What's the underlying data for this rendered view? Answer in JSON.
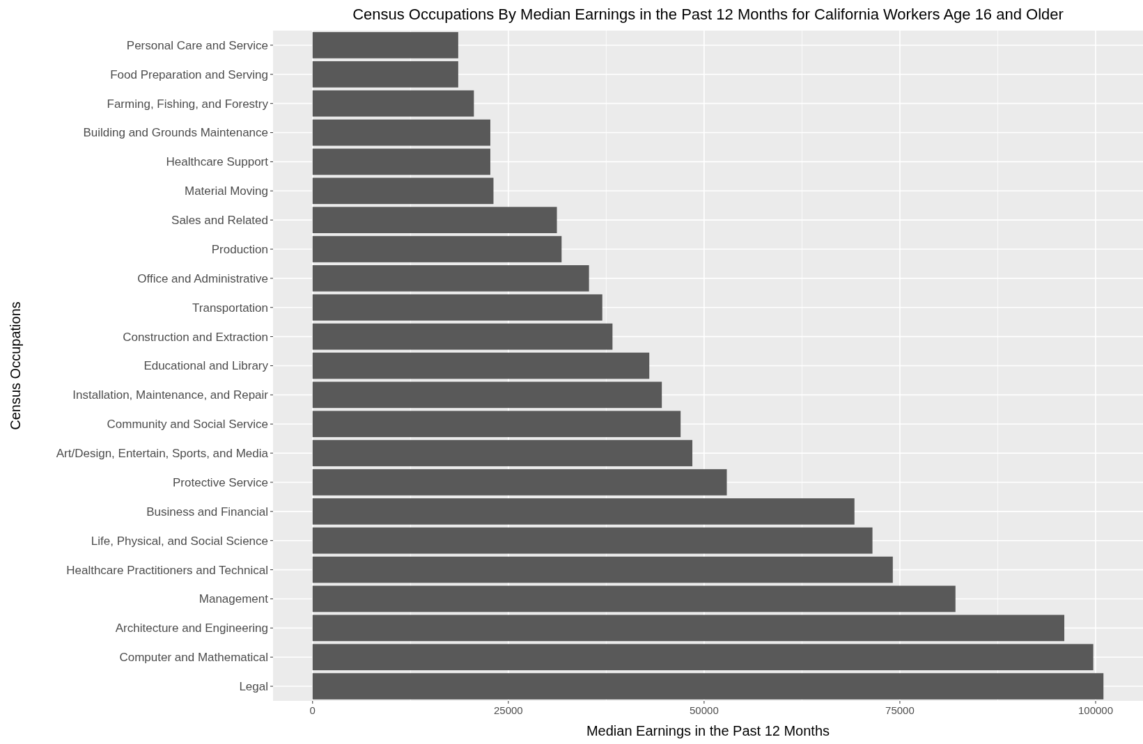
{
  "chart_data": {
    "type": "bar",
    "orientation": "horizontal",
    "title": "Census Occupations By Median Earnings in the Past 12 Months for California Workers Age 16 and Older",
    "xlabel": "Median Earnings in the Past 12 Months",
    "ylabel": "Census Occupations",
    "categories": [
      "Personal Care and Service",
      "Food Preparation and Serving",
      "Farming, Fishing, and Forestry",
      "Building and Grounds Maintenance",
      "Healthcare Support",
      "Material Moving",
      "Sales and Related",
      "Production",
      "Office and Administrative",
      "Transportation",
      "Construction and Extraction",
      "Educational and Library",
      "Installation, Maintenance, and Repair",
      "Community and Social Service",
      "Art/Design, Entertain, Sports, and Media",
      "Protective Service",
      "Business and Financial",
      "Life, Physical, and Social Science",
      "Healthcare Practitioners and Technical",
      "Management",
      "Architecture and Engineering",
      "Computer and Mathematical",
      "Legal"
    ],
    "values": [
      18600,
      18600,
      20600,
      22700,
      22700,
      23100,
      31200,
      31800,
      35300,
      37000,
      38300,
      43000,
      44600,
      47000,
      48500,
      52900,
      69200,
      71500,
      74100,
      82100,
      96000,
      99700,
      101000
    ],
    "color": "#595959",
    "xlim": [
      -5050,
      106050
    ],
    "xticks": [
      0,
      25000,
      50000,
      75000,
      100000
    ],
    "grid": true
  }
}
